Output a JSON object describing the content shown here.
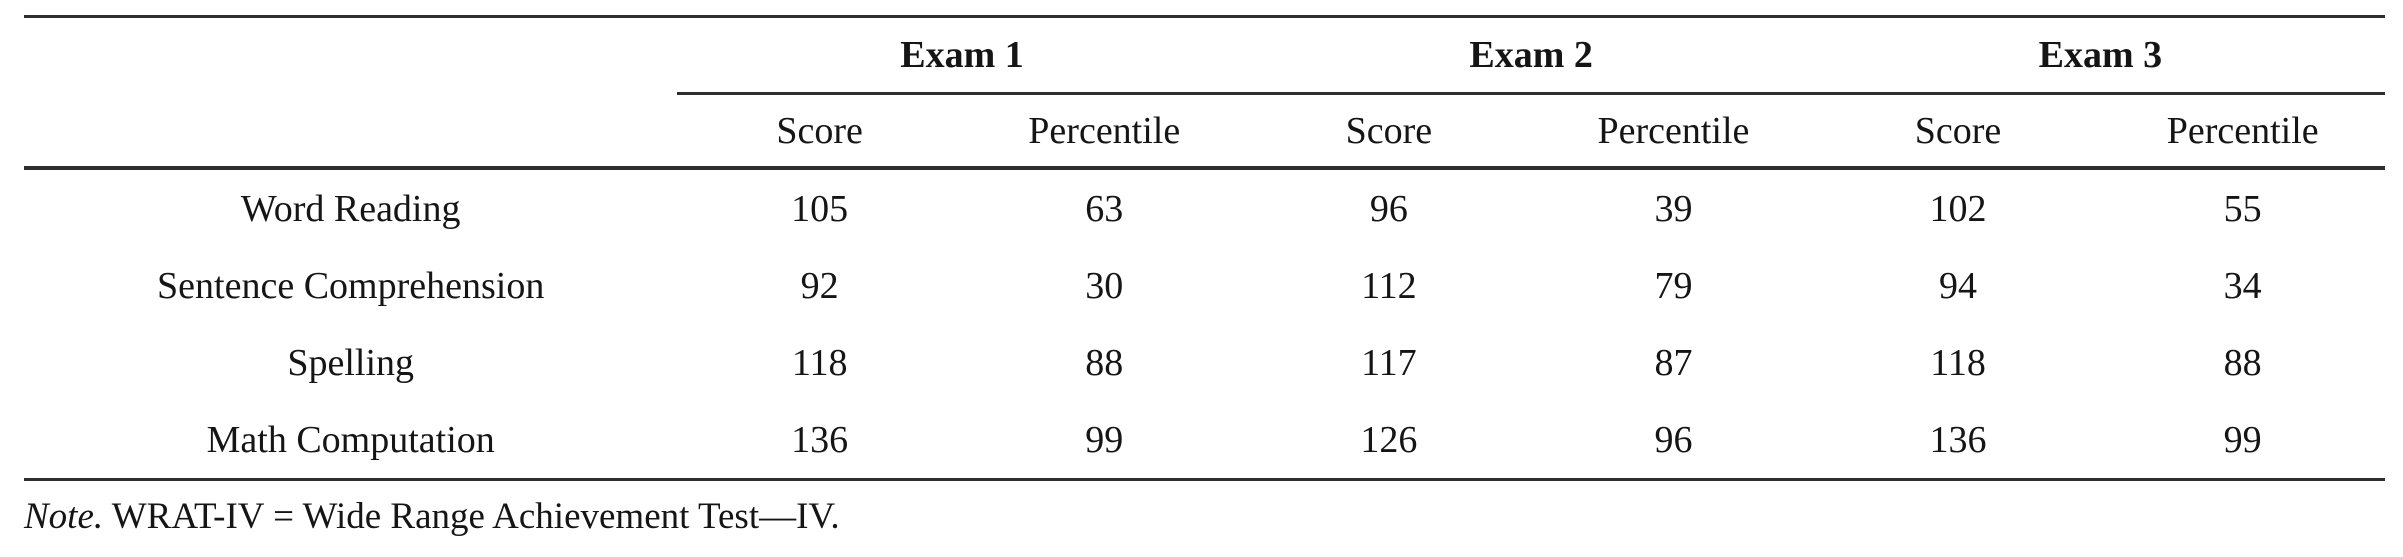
{
  "table": {
    "col_groups": [
      {
        "label": "Exam 1"
      },
      {
        "label": "Exam 2"
      },
      {
        "label": "Exam 3"
      }
    ],
    "sub_headers": [
      "Score",
      "Percentile",
      "Score",
      "Percentile",
      "Score",
      "Percentile"
    ],
    "rows": [
      {
        "label": "Word Reading",
        "values": [
          "105",
          "63",
          "96",
          "39",
          "102",
          "55"
        ]
      },
      {
        "label": "Sentence Comprehension",
        "values": [
          "92",
          "30",
          "112",
          "79",
          "94",
          "34"
        ]
      },
      {
        "label": "Spelling",
        "values": [
          "118",
          "88",
          "117",
          "87",
          "118",
          "88"
        ]
      },
      {
        "label": "Math Computation",
        "values": [
          "136",
          "99",
          "126",
          "96",
          "136",
          "99"
        ]
      }
    ],
    "note": {
      "label": "Note.",
      "text": " WRAT-IV = Wide Range Achievement Test—IV."
    }
  },
  "colors": {
    "rule": "#2e2e2e",
    "text": "#151515",
    "background": "#ffffff"
  }
}
